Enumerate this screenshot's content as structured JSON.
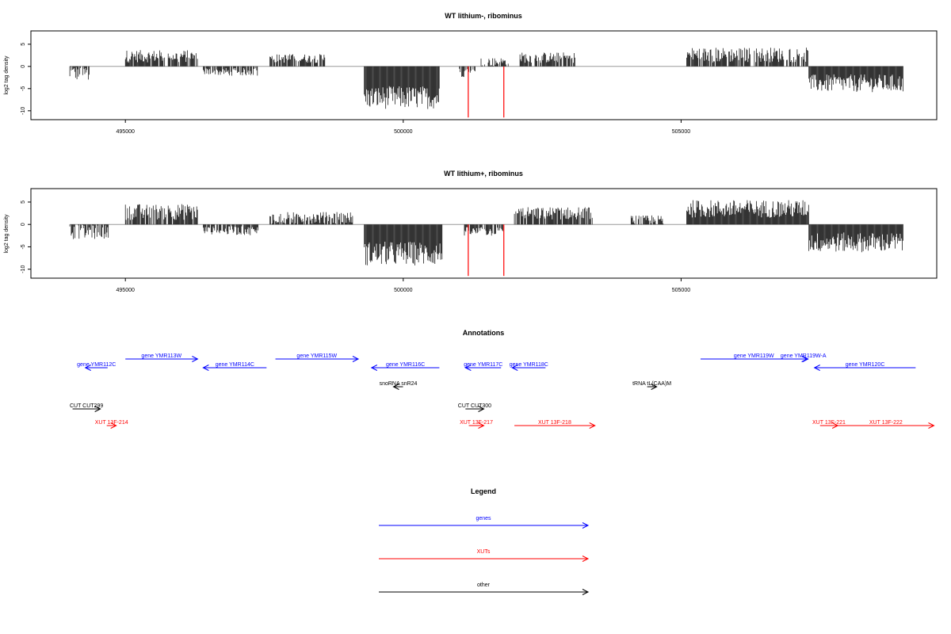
{
  "chart_data": [
    {
      "type": "bar",
      "title": "WT lithium-, ribominus",
      "xlabel": "",
      "ylabel": "log2 tag density",
      "xlim": [
        493300,
        509600
      ],
      "ylim": [
        -12,
        8
      ],
      "yticks": [
        -10,
        -5,
        0,
        5
      ],
      "xticks": [
        495000,
        500000,
        505000
      ],
      "x_tick_labels": [
        "495000",
        "500000",
        "505000"
      ],
      "baseline_color": "#999999",
      "bar_color": "#000000",
      "regions": [
        {
          "start": 494000,
          "end": 494350,
          "mean": -1.5,
          "amp": 1.8
        },
        {
          "start": 495000,
          "end": 496300,
          "mean": 2.3,
          "amp": 1.4
        },
        {
          "start": 496400,
          "end": 497400,
          "mean": -1.2,
          "amp": 0.9
        },
        {
          "start": 497600,
          "end": 498600,
          "mean": 1.8,
          "amp": 1.0
        },
        {
          "start": 499300,
          "end": 500650,
          "mean": -7.0,
          "amp": 2.6
        },
        {
          "start": 501000,
          "end": 501300,
          "mean": -1.4,
          "amp": 1.0
        },
        {
          "start": 501400,
          "end": 501900,
          "mean": 1.0,
          "amp": 1.0
        },
        {
          "start": 502100,
          "end": 503100,
          "mean": 2.0,
          "amp": 1.2
        },
        {
          "start": 505100,
          "end": 507300,
          "mean": 2.6,
          "amp": 1.7
        },
        {
          "start": 507300,
          "end": 509000,
          "mean": -3.8,
          "amp": 2.0
        }
      ],
      "highlight_bars": [
        {
          "x": 501170,
          "value": -11.5,
          "color": "#ff0000"
        },
        {
          "x": 501810,
          "value": -11.5,
          "color": "#ff0000"
        }
      ]
    },
    {
      "type": "bar",
      "title": "WT lithium+, ribominus",
      "xlabel": "",
      "ylabel": "log2 tag density",
      "xlim": [
        493300,
        509600
      ],
      "ylim": [
        -12,
        8
      ],
      "yticks": [
        -10,
        -5,
        0,
        5
      ],
      "xticks": [
        495000,
        500000,
        505000
      ],
      "x_tick_labels": [
        "495000",
        "500000",
        "505000"
      ],
      "baseline_color": "#999999",
      "bar_color": "#000000",
      "regions": [
        {
          "start": 494000,
          "end": 494700,
          "mean": -1.7,
          "amp": 1.6
        },
        {
          "start": 495000,
          "end": 496300,
          "mean": 2.8,
          "amp": 1.8
        },
        {
          "start": 496400,
          "end": 497400,
          "mean": -1.4,
          "amp": 1.0
        },
        {
          "start": 497600,
          "end": 499100,
          "mean": 1.5,
          "amp": 1.3
        },
        {
          "start": 499300,
          "end": 500700,
          "mean": -6.5,
          "amp": 2.7
        },
        {
          "start": 501100,
          "end": 501800,
          "mean": -1.6,
          "amp": 1.0
        },
        {
          "start": 502000,
          "end": 503400,
          "mean": 2.5,
          "amp": 1.4
        },
        {
          "start": 504100,
          "end": 504700,
          "mean": 0.8,
          "amp": 1.2
        },
        {
          "start": 505100,
          "end": 507300,
          "mean": 3.5,
          "amp": 2.0
        },
        {
          "start": 507300,
          "end": 509000,
          "mean": -4.0,
          "amp": 2.2
        }
      ],
      "highlight_bars": [
        {
          "x": 501170,
          "value": -11.5,
          "color": "#ff0000"
        },
        {
          "x": 501810,
          "value": -11.5,
          "color": "#ff0000"
        }
      ]
    }
  ],
  "annotations": {
    "title": "Annotations",
    "items": [
      {
        "label": "gene YMR112C",
        "start": 494280,
        "end": 494680,
        "strand": "-",
        "type": "gene",
        "row": 1
      },
      {
        "label": "gene YMR113W",
        "start": 495000,
        "end": 496300,
        "strand": "+",
        "type": "gene",
        "row": 0
      },
      {
        "label": "gene YMR114C",
        "start": 496400,
        "end": 497540,
        "strand": "-",
        "type": "gene",
        "row": 1
      },
      {
        "label": "gene YMR115W",
        "start": 497700,
        "end": 499190,
        "strand": "+",
        "type": "gene",
        "row": 0
      },
      {
        "label": "gene YMR116C",
        "start": 499430,
        "end": 500650,
        "strand": "-",
        "type": "gene",
        "row": 1
      },
      {
        "label": "gene YMR117C",
        "start": 501120,
        "end": 501760,
        "strand": "-",
        "type": "gene",
        "row": 1
      },
      {
        "label": "gene YMR118C",
        "start": 501960,
        "end": 502560,
        "strand": "-",
        "type": "gene",
        "row": 1
      },
      {
        "label": "snoRNA snR24",
        "start": 499860,
        "end": 499960,
        "strand": "-",
        "type": "other",
        "row": 2
      },
      {
        "label": "tRNA tL(CAA)M",
        "start": 504450,
        "end": 504500,
        "strand": "+",
        "type": "other",
        "row": 2
      },
      {
        "label": "gene YMR119W",
        "start": 505350,
        "end": 507270,
        "strand": "+",
        "type": "gene",
        "row": 0
      },
      {
        "label": "gene YMR119W-A",
        "start": 507120,
        "end": 507280,
        "strand": "+",
        "type": "gene",
        "row": 0
      },
      {
        "label": "gene YMR120C",
        "start": 507400,
        "end": 509220,
        "strand": "-",
        "type": "gene",
        "row": 1
      },
      {
        "label": "CUT CUT299",
        "start": 494050,
        "end": 494550,
        "strand": "+",
        "type": "other",
        "row": 3
      },
      {
        "label": "XUT 13F-214",
        "start": 494680,
        "end": 494820,
        "strand": "+",
        "type": "xut",
        "row": 4
      },
      {
        "label": "CUT CUT300",
        "start": 501120,
        "end": 501450,
        "strand": "+",
        "type": "other",
        "row": 3
      },
      {
        "label": "XUT 13F-217",
        "start": 501180,
        "end": 501450,
        "strand": "+",
        "type": "xut",
        "row": 4
      },
      {
        "label": "XUT 13F-218",
        "start": 502000,
        "end": 503450,
        "strand": "+",
        "type": "xut",
        "row": 4
      },
      {
        "label": "XUT 13F-221",
        "start": 507500,
        "end": 507820,
        "strand": "+",
        "type": "xut",
        "row": 4
      },
      {
        "label": "XUT 13F-222",
        "start": 507820,
        "end": 509550,
        "strand": "+",
        "type": "xut",
        "row": 4
      }
    ]
  },
  "legend": {
    "title": "Legend",
    "entries": [
      {
        "label": "genes",
        "color": "#0000ff"
      },
      {
        "label": "XUTs",
        "color": "#ff0000"
      },
      {
        "label": "other",
        "color": "#000000"
      }
    ]
  },
  "colors": {
    "gene": "#0000ff",
    "xut": "#ff0000",
    "other": "#000000"
  }
}
